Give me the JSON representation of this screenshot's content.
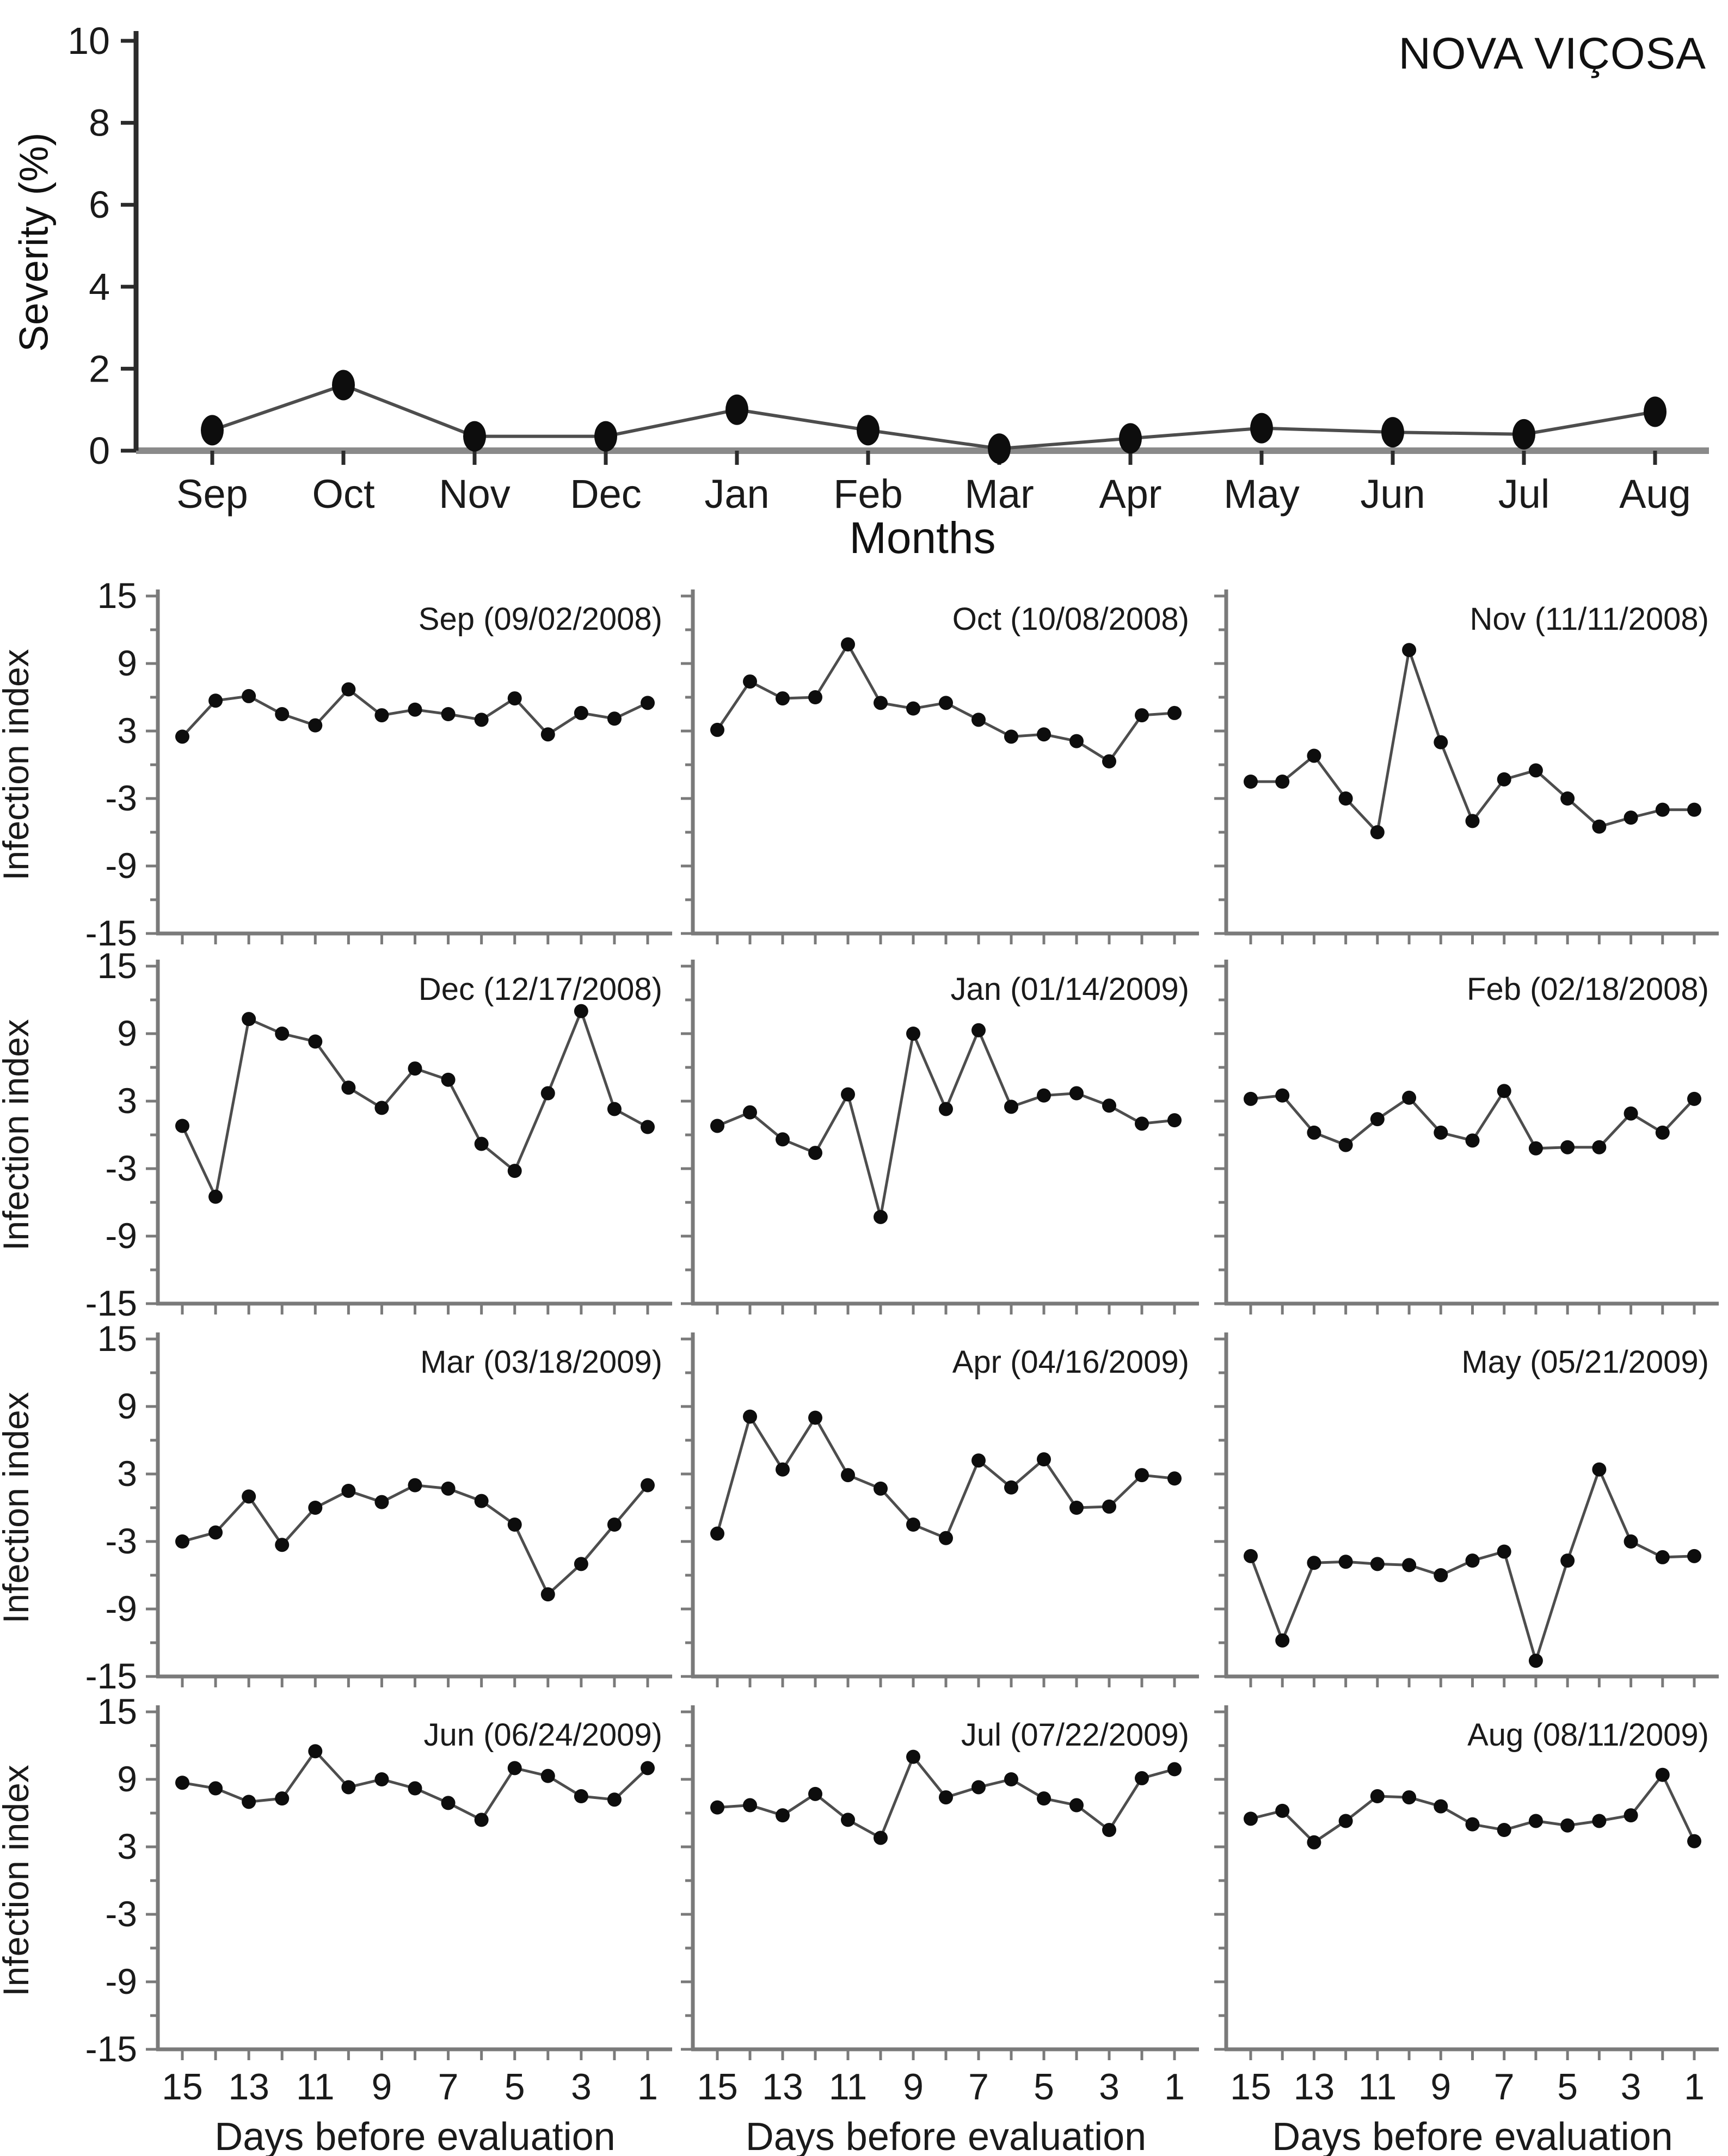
{
  "title": "NOVA VIÇOSA",
  "chart_data": [
    {
      "type": "line",
      "title": "NOVA VIÇOSA",
      "ylabel": "Severity (%)",
      "xlabel": "Months",
      "ylim": [
        0,
        10
      ],
      "yticks": [
        0,
        2,
        4,
        6,
        8,
        10
      ],
      "grid": false,
      "legend": "none",
      "marker": "filled-ellipse",
      "categories": [
        "Sep",
        "Oct",
        "Nov",
        "Dec",
        "Jan",
        "Feb",
        "Mar",
        "Apr",
        "May",
        "Jun",
        "Jul",
        "Aug"
      ],
      "values": [
        0.5,
        1.6,
        0.35,
        0.35,
        1.0,
        0.5,
        0.05,
        0.3,
        0.55,
        0.45,
        0.4,
        0.95
      ]
    },
    {
      "type": "line",
      "layout": "small-multiples 4 rows x 3 cols",
      "ylabel": "Infection index",
      "xlabel": "Days before evaluation",
      "ylim": [
        -15,
        15
      ],
      "yticks": [
        15,
        9,
        3,
        -3,
        -9,
        -15
      ],
      "x": [
        15,
        14,
        13,
        12,
        11,
        10,
        9,
        8,
        7,
        6,
        5,
        4,
        3,
        2,
        1
      ],
      "xticks": [
        15,
        13,
        11,
        9,
        7,
        5,
        3,
        1
      ],
      "grid": false,
      "marker": "filled-circle",
      "panels": [
        {
          "title": "Sep (09/02/2008)",
          "values": [
            2.5,
            5.7,
            6.1,
            4.5,
            3.5,
            6.7,
            4.4,
            4.9,
            4.5,
            4.0,
            5.9,
            2.7,
            4.6,
            4.1,
            5.5
          ]
        },
        {
          "title": "Oct (10/08/2008)",
          "values": [
            3.1,
            7.4,
            5.9,
            6.0,
            10.7,
            5.5,
            5.0,
            5.5,
            4.0,
            2.5,
            2.7,
            2.1,
            0.3,
            4.4,
            4.6
          ]
        },
        {
          "title": "Nov (11/11/2008)",
          "values": [
            -1.5,
            -1.5,
            0.8,
            -3.0,
            -6.0,
            10.2,
            2.0,
            -5.0,
            -1.3,
            -0.5,
            -3.0,
            -5.5,
            -4.7,
            -4.0,
            -4.0
          ]
        },
        {
          "title": "Dec (12/17/2008)",
          "values": [
            0.8,
            -5.5,
            10.3,
            9.0,
            8.3,
            4.2,
            2.4,
            5.9,
            4.9,
            -0.8,
            -3.2,
            3.7,
            11.0,
            2.3,
            0.7
          ]
        },
        {
          "title": "Jan (01/14/2009)",
          "values": [
            0.8,
            2.0,
            -0.4,
            -1.6,
            3.6,
            -7.3,
            9.0,
            2.3,
            9.3,
            2.5,
            3.5,
            3.7,
            2.6,
            1.0,
            1.3
          ]
        },
        {
          "title": "Feb (02/18/2008)",
          "values": [
            3.2,
            3.5,
            0.2,
            -0.9,
            1.4,
            3.3,
            0.2,
            -0.5,
            3.9,
            -1.2,
            -1.1,
            -1.1,
            1.9,
            0.2,
            3.2
          ]
        },
        {
          "title": "Mar (03/18/2009)",
          "values": [
            -3.0,
            -2.2,
            1.0,
            -3.3,
            0.0,
            1.5,
            0.5,
            2.0,
            1.7,
            0.6,
            -1.5,
            -7.7,
            -5.0,
            -1.5,
            2.0
          ]
        },
        {
          "title": "Apr (04/16/2009)",
          "values": [
            -2.3,
            8.1,
            3.4,
            8.0,
            2.9,
            1.7,
            -1.5,
            -2.7,
            4.2,
            1.8,
            4.3,
            0.0,
            0.1,
            2.9,
            2.6
          ]
        },
        {
          "title": "May (05/21/2009)",
          "values": [
            -4.3,
            -11.8,
            -4.9,
            -4.8,
            -5.0,
            -5.1,
            -6.0,
            -4.7,
            -3.9,
            -13.6,
            -4.7,
            3.4,
            -3.0,
            -4.4,
            -4.3
          ]
        },
        {
          "title": "Jun (06/24/2009)",
          "values": [
            8.7,
            8.2,
            7.0,
            7.3,
            11.5,
            8.3,
            9.0,
            8.2,
            6.9,
            5.4,
            10.0,
            9.3,
            7.5,
            7.2,
            10.0
          ]
        },
        {
          "title": "Jul (07/22/2009)",
          "values": [
            6.5,
            6.7,
            5.8,
            7.7,
            5.4,
            3.8,
            11.0,
            7.4,
            8.3,
            9.0,
            7.3,
            6.7,
            4.5,
            9.1,
            9.9
          ]
        },
        {
          "title": "Aug (08/11/2009)",
          "values": [
            5.5,
            6.2,
            3.4,
            5.3,
            7.5,
            7.4,
            6.6,
            5.0,
            4.5,
            5.3,
            4.9,
            5.3,
            5.8,
            9.4,
            3.5
          ]
        }
      ]
    }
  ],
  "style_colors": {
    "line": "#4d4d4d",
    "marker": "#0d0d0d",
    "panel_axis": "#7a7a7a",
    "baseline": "#8a8a8a",
    "severity_y_axis": "#2b2b2b",
    "text": "#1a1a1a"
  }
}
